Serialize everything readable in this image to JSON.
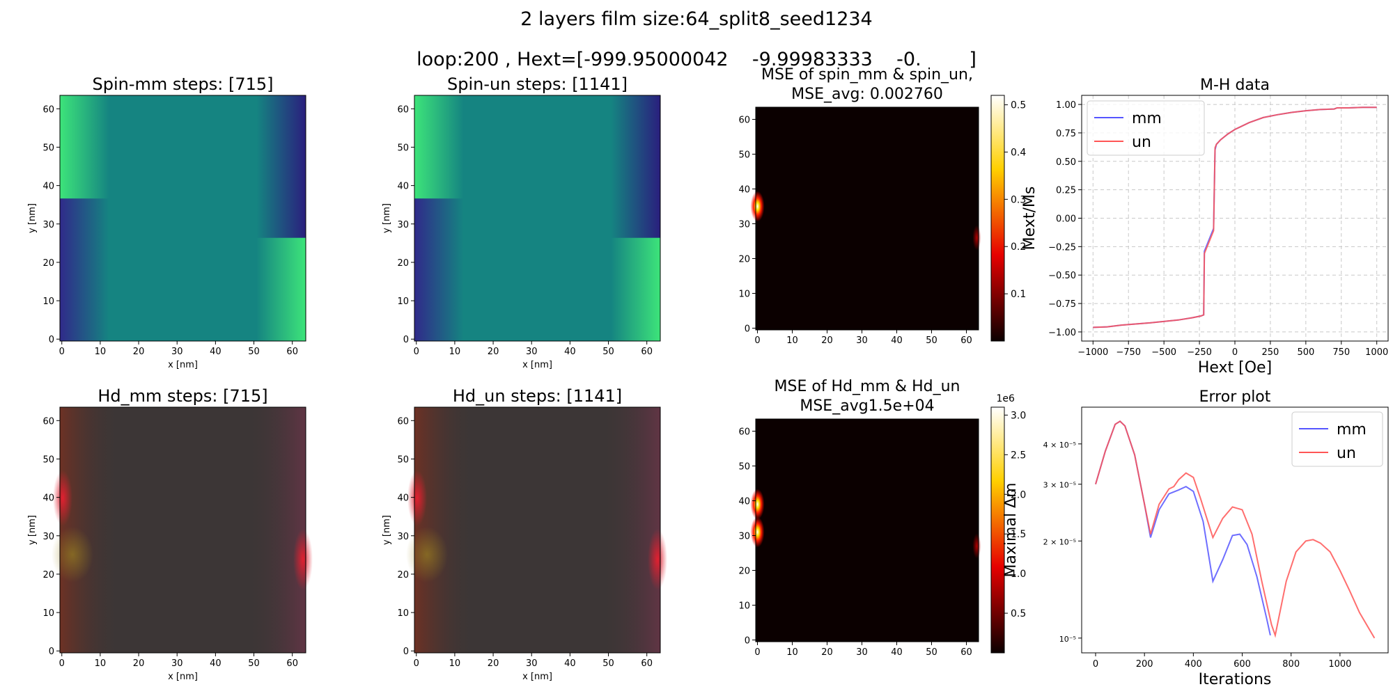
{
  "figure": {
    "suptitle_line1": "2 layers film size:64_split8_seed1234",
    "suptitle_line2": "loop:200 , Hext=[-999.95000042    -9.99983333    -0.        ]"
  },
  "chart_data": [
    {
      "id": "spin_mm",
      "type": "heatmap",
      "title": "Spin-mm steps: [715]",
      "xlabel": "x [nm]",
      "ylabel": "y [nm]",
      "xticks": [
        "0",
        "10",
        "20",
        "30",
        "40",
        "50",
        "60"
      ],
      "yticks": [
        "0",
        "10",
        "20",
        "30",
        "40",
        "50",
        "60"
      ],
      "xlim": [
        -0.5,
        63.5
      ],
      "ylim": [
        -0.5,
        63.5
      ],
      "colormap": "viridis-like (navy to teal to green)",
      "description_values": {
        "background": "teal",
        "dark_regions": [
          "left 0-35",
          "right 35-64"
        ],
        "bright_regions": [
          "left 40-64",
          "right 0-25"
        ]
      }
    },
    {
      "id": "spin_un",
      "type": "heatmap",
      "title": "Spin-un steps: [1141]",
      "xlabel": "x [nm]",
      "ylabel": "y [nm]",
      "xticks": [
        "0",
        "10",
        "20",
        "30",
        "40",
        "50",
        "60"
      ],
      "yticks": [
        "0",
        "10",
        "20",
        "30",
        "40",
        "50",
        "60"
      ],
      "xlim": [
        -0.5,
        63.5
      ],
      "ylim": [
        -0.5,
        63.5
      ],
      "colormap": "viridis-like (navy to teal to green)"
    },
    {
      "id": "mse_spin",
      "type": "heatmap",
      "title_line1": "MSE of spin_mm & spin_un,",
      "title_line2": "MSE_avg: 0.002760",
      "xticks": [
        "0",
        "10",
        "20",
        "30",
        "40",
        "50",
        "60"
      ],
      "yticks": [
        "0",
        "10",
        "20",
        "30",
        "40",
        "50",
        "60"
      ],
      "colormap": "hot",
      "colorbar_ticks": [
        "0.1",
        "0.2",
        "0.3",
        "0.4",
        "0.5"
      ],
      "colorbar_range": [
        0,
        0.52
      ],
      "hotspots": [
        {
          "x": 0,
          "y": 35,
          "value": 0.52
        },
        {
          "x": 63,
          "y": 26,
          "value": 0.08
        }
      ]
    },
    {
      "id": "mh_data",
      "type": "line",
      "title": "M-H data",
      "xlabel": "Hext [Oe]",
      "ylabel": "Mext/Ms",
      "xlim": [
        -1080,
        1080
      ],
      "ylim": [
        -1.08,
        1.08
      ],
      "xticks": [
        -1000,
        -750,
        -500,
        -250,
        0,
        250,
        500,
        750,
        1000
      ],
      "xtick_labels": [
        "−1000",
        "−750",
        "−500",
        "−250",
        "0",
        "250",
        "500",
        "750",
        "1000"
      ],
      "yticks": [
        -1.0,
        -0.75,
        -0.5,
        -0.25,
        0.0,
        0.25,
        0.5,
        0.75,
        1.0
      ],
      "ytick_labels": [
        "−1.00",
        "−0.75",
        "−0.50",
        "−0.25",
        "0.00",
        "0.25",
        "0.50",
        "0.75",
        "1.00"
      ],
      "grid": true,
      "legend": "upper left",
      "series": [
        {
          "name": "mm",
          "color": "#5555ff",
          "x": [
            -1000,
            -900,
            -800,
            -600,
            -400,
            -300,
            -240,
            -220,
            -215,
            -150,
            -140,
            -130,
            -100,
            -50,
            0,
            100,
            200,
            300,
            400,
            500,
            600,
            700,
            720,
            800,
            900,
            1000
          ],
          "y": [
            -0.96,
            -0.955,
            -0.94,
            -0.92,
            -0.895,
            -0.875,
            -0.86,
            -0.85,
            -0.29,
            -0.09,
            0.6,
            0.65,
            0.69,
            0.74,
            0.78,
            0.84,
            0.885,
            0.91,
            0.93,
            0.945,
            0.955,
            0.96,
            0.97,
            0.97,
            0.975,
            0.975
          ]
        },
        {
          "name": "un",
          "color": "#ff5555",
          "x": [
            -1000,
            -900,
            -800,
            -600,
            -400,
            -300,
            -240,
            -220,
            -215,
            -150,
            -140,
            -130,
            -100,
            -50,
            0,
            100,
            200,
            300,
            400,
            500,
            600,
            700,
            720,
            800,
            900,
            1000
          ],
          "y": [
            -0.96,
            -0.955,
            -0.94,
            -0.92,
            -0.895,
            -0.875,
            -0.86,
            -0.85,
            -0.31,
            -0.11,
            0.62,
            0.65,
            0.69,
            0.74,
            0.78,
            0.84,
            0.885,
            0.91,
            0.93,
            0.945,
            0.955,
            0.96,
            0.97,
            0.97,
            0.975,
            0.975
          ]
        }
      ]
    },
    {
      "id": "hd_mm",
      "type": "heatmap",
      "title": "Hd_mm steps: [715]",
      "xlabel": "x [nm]",
      "ylabel": "y [nm]",
      "xticks": [
        "0",
        "10",
        "20",
        "30",
        "40",
        "50",
        "60"
      ],
      "yticks": [
        "0",
        "10",
        "20",
        "30",
        "40",
        "50",
        "60"
      ],
      "colormap": "rgb field"
    },
    {
      "id": "hd_un",
      "type": "heatmap",
      "title": "Hd_un steps: [1141]",
      "xlabel": "x [nm]",
      "ylabel": "y [nm]",
      "xticks": [
        "0",
        "10",
        "20",
        "30",
        "40",
        "50",
        "60"
      ],
      "yticks": [
        "0",
        "10",
        "20",
        "30",
        "40",
        "50",
        "60"
      ],
      "colormap": "rgb field"
    },
    {
      "id": "mse_hd",
      "type": "heatmap",
      "title_line1": "MSE of Hd_mm & Hd_un",
      "title_line2": "MSE_avg1.5e+04",
      "xticks": [
        "0",
        "10",
        "20",
        "30",
        "40",
        "50",
        "60"
      ],
      "yticks": [
        "0",
        "10",
        "20",
        "30",
        "40",
        "50",
        "60"
      ],
      "colormap": "hot",
      "colorbar_ticks": [
        "0.5",
        "1.0",
        "1.5",
        "2.0",
        "2.5",
        "3.0"
      ],
      "colorbar_offset": "1e6",
      "colorbar_range": [
        0,
        3.1
      ],
      "hotspots": [
        {
          "x": 0,
          "y": 39,
          "value": 3.1
        },
        {
          "x": 0,
          "y": 31,
          "value": 3.1
        },
        {
          "x": 63,
          "y": 27,
          "value": 0.4
        }
      ]
    },
    {
      "id": "error_plot",
      "type": "line",
      "title": "Error plot",
      "xlabel": "Iterations",
      "ylabel": "Maximal Δm",
      "yscale": "log",
      "xlim": [
        -57,
        1197
      ],
      "ylim": [
        9e-06,
        5.2e-05
      ],
      "xticks": [
        0,
        200,
        400,
        600,
        800,
        1000
      ],
      "ytick_labels": [
        "10⁻⁵",
        "2 × 10⁻⁵",
        "3 × 10⁻⁵",
        "4 × 10⁻⁵"
      ],
      "yticks": [
        1e-05,
        2e-05,
        3e-05,
        4e-05
      ],
      "legend": "upper right",
      "series": [
        {
          "name": "mm",
          "color": "#5555ff",
          "x": [
            0,
            40,
            80,
            100,
            120,
            160,
            200,
            225,
            260,
            300,
            340,
            370,
            400,
            440,
            480,
            520,
            560,
            590,
            620,
            660,
            700,
            715
          ],
          "y": [
            3e-05,
            3.8e-05,
            4.6e-05,
            4.7e-05,
            4.55e-05,
            3.7e-05,
            2.6e-05,
            2.05e-05,
            2.5e-05,
            2.8e-05,
            2.88e-05,
            2.95e-05,
            2.85e-05,
            2.3e-05,
            1.5e-05,
            1.75e-05,
            2.08e-05,
            2.1e-05,
            1.95e-05,
            1.55e-05,
            1.15e-05,
            1.02e-05
          ]
        },
        {
          "name": "un",
          "color": "#ff5555",
          "x": [
            0,
            40,
            80,
            100,
            120,
            160,
            200,
            225,
            260,
            300,
            320,
            340,
            370,
            400,
            430,
            480,
            520,
            560,
            600,
            640,
            680,
            720,
            735,
            780,
            820,
            860,
            890,
            920,
            960,
            1000,
            1040,
            1080,
            1141
          ],
          "y": [
            3e-05,
            3.8e-05,
            4.6e-05,
            4.7e-05,
            4.55e-05,
            3.7e-05,
            2.6e-05,
            2.1e-05,
            2.6e-05,
            2.9e-05,
            2.95e-05,
            3.1e-05,
            3.25e-05,
            3.15e-05,
            2.7e-05,
            2.05e-05,
            2.35e-05,
            2.55e-05,
            2.5e-05,
            2.1e-05,
            1.5e-05,
            1.1e-05,
            1.02e-05,
            1.5e-05,
            1.85e-05,
            2e-05,
            2.02e-05,
            1.97e-05,
            1.85e-05,
            1.62e-05,
            1.4e-05,
            1.2e-05,
            1e-05
          ]
        }
      ]
    }
  ]
}
